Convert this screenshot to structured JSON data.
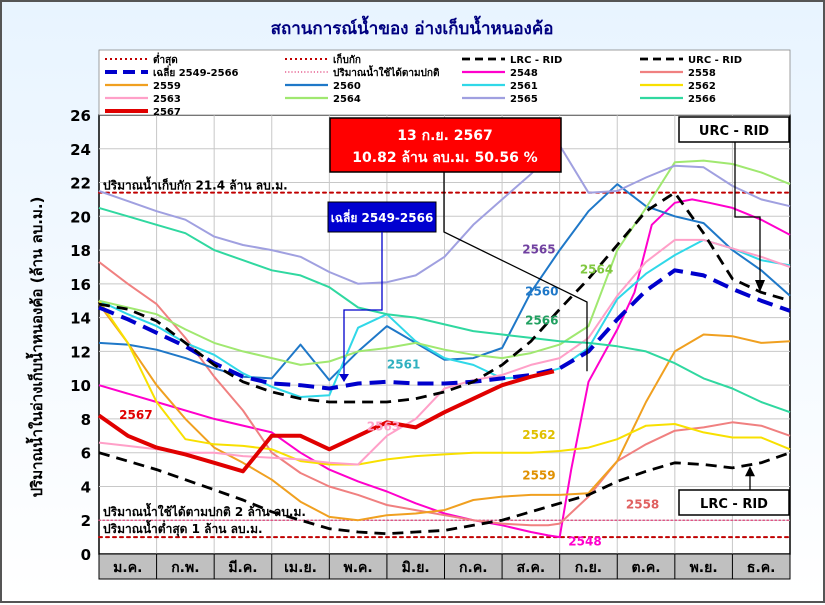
{
  "chart_data": {
    "type": "line",
    "title": "สถานการณ์น้ำของ อ่างเก็บน้ำหนองค้อ",
    "ylabel": "ปริมาณน้ำในอ่างเก็บน้ำหนองค้อ (ล้าน ลบ.ม.)",
    "xlabel": "",
    "ylim": [
      0,
      26
    ],
    "yticks": [
      0,
      2,
      4,
      6,
      8,
      10,
      12,
      14,
      16,
      18,
      20,
      22,
      24,
      26
    ],
    "months": [
      "ม.ค.",
      "ก.พ.",
      "มี.ค.",
      "เม.ย.",
      "พ.ค.",
      "มิ.ย.",
      "ก.ค.",
      "ส.ค.",
      "ก.ย.",
      "ต.ค.",
      "พ.ย.",
      "ธ.ค."
    ],
    "grid": true,
    "legend_position": "top",
    "reference_lines": [
      {
        "name": "ต่ำสุด",
        "value": 1.0,
        "color": "#c00000",
        "style": "dotted",
        "label": "ปริมาณน้ำต่ำสุด 1 ล้าน ลบ.ม."
      },
      {
        "name": "เก็บกัก",
        "value": 21.4,
        "color": "#c00000",
        "style": "dotted",
        "label": "ปริมาณน้ำเก็บกัก 21.4 ล้าน ลบ.ม."
      },
      {
        "name": "ปริมาณน้ำใช้ได้ตามปกติ",
        "value": 2.0,
        "color": "#e0407a",
        "style": "dotted-thin",
        "label": "ปริมาณน้ำใช้ได้ตามปกติ 2 ล้าน ลบ.ม."
      }
    ],
    "series": [
      {
        "name": "LRC - RID",
        "color": "#000000",
        "dash": "dash",
        "x": [
          0,
          0.5,
          1,
          1.5,
          2,
          2.5,
          3,
          3.5,
          4,
          4.5,
          5,
          5.5,
          6,
          6.5,
          7,
          7.5,
          8,
          8.5,
          9,
          9.5,
          10,
          10.5,
          11,
          11.5,
          12
        ],
        "values": [
          6.0,
          5.5,
          5.0,
          4.4,
          3.8,
          3.2,
          2.5,
          2.0,
          1.5,
          1.3,
          1.2,
          1.3,
          1.4,
          1.7,
          2.0,
          2.5,
          3.0,
          3.5,
          4.3,
          4.9,
          5.4,
          5.3,
          5.1,
          5.4,
          6.0
        ]
      },
      {
        "name": "URC - RID",
        "color": "#000000",
        "dash": "dash",
        "x": [
          0,
          0.5,
          1,
          1.5,
          2,
          2.5,
          3,
          3.5,
          4,
          4.5,
          5,
          5.5,
          6,
          6.5,
          7,
          7.5,
          8,
          8.5,
          9,
          9.5,
          10,
          10.5,
          11,
          11.5,
          12
        ],
        "values": [
          14.8,
          14.5,
          13.8,
          12.5,
          11.2,
          10.2,
          9.6,
          9.2,
          9.0,
          9.0,
          9.0,
          9.2,
          9.6,
          10.2,
          11.2,
          12.6,
          14.5,
          16.3,
          18.3,
          20.3,
          21.4,
          19.0,
          16.3,
          15.5,
          15.0
        ]
      },
      {
        "name": "เฉลี่ย 2549-2566",
        "color": "#0000cc",
        "dash": "dash-thick",
        "x": [
          0,
          0.5,
          1,
          1.5,
          2,
          2.5,
          3,
          3.5,
          4,
          4.5,
          5,
          5.5,
          6,
          6.5,
          7,
          7.5,
          8,
          8.5,
          9,
          9.5,
          10,
          10.5,
          11,
          11.5,
          12
        ],
        "values": [
          14.6,
          13.9,
          13.1,
          12.3,
          11.3,
          10.5,
          10.1,
          10.0,
          9.8,
          10.1,
          10.2,
          10.1,
          10.1,
          10.2,
          10.4,
          10.6,
          11.0,
          12.0,
          13.9,
          15.6,
          16.8,
          16.5,
          15.7,
          15.0,
          14.4
        ]
      },
      {
        "name": "2548",
        "color": "#ff00cc",
        "x": [
          0,
          1,
          2,
          3,
          3.5,
          4,
          4.5,
          5,
          5.5,
          6,
          6.5,
          7,
          7.5,
          7.8,
          8,
          8.2,
          8.5,
          9,
          9.3,
          9.6,
          10,
          10.3,
          10.6,
          11,
          11.5,
          12
        ],
        "values": [
          10.0,
          9.0,
          8.0,
          7.2,
          6.0,
          5.0,
          4.3,
          3.7,
          3.0,
          2.4,
          2.0,
          1.7,
          1.3,
          1.1,
          1.0,
          5.0,
          10.2,
          13.3,
          15.5,
          19.5,
          20.8,
          21.0,
          20.8,
          20.5,
          19.8,
          18.9
        ]
      },
      {
        "name": "2558",
        "color": "#f08080",
        "x": [
          0,
          0.5,
          1,
          1.5,
          2,
          2.5,
          3,
          3.5,
          4,
          4.5,
          5,
          5.5,
          6,
          6.5,
          7,
          7.5,
          7.8,
          8,
          8.5,
          9,
          9.5,
          10,
          10.5,
          11,
          11.5,
          12
        ],
        "values": [
          17.3,
          16.0,
          14.8,
          12.8,
          10.5,
          8.5,
          6.0,
          4.8,
          4.0,
          3.5,
          2.9,
          2.6,
          2.3,
          2.0,
          1.8,
          1.7,
          1.7,
          1.8,
          3.4,
          5.5,
          6.5,
          7.3,
          7.5,
          7.8,
          7.6,
          7.0
        ]
      },
      {
        "name": "2559",
        "color": "#f0a020",
        "x": [
          0,
          0.5,
          1,
          1.5,
          2,
          2.5,
          3,
          3.5,
          4,
          4.5,
          5,
          5.5,
          6,
          6.5,
          7,
          7.5,
          8,
          8.5,
          9,
          9.5,
          10,
          10.5,
          11,
          11.5,
          12
        ],
        "values": [
          14.8,
          12.5,
          10.0,
          8.0,
          6.3,
          5.4,
          4.4,
          3.1,
          2.2,
          2.0,
          2.3,
          2.4,
          2.6,
          3.2,
          3.4,
          3.5,
          3.5,
          3.6,
          5.5,
          9.0,
          12.0,
          13.0,
          12.9,
          12.5,
          12.6
        ]
      },
      {
        "name": "2560",
        "color": "#1f78c8",
        "x": [
          0,
          0.5,
          1,
          1.5,
          2,
          2.5,
          3,
          3.5,
          4,
          4.5,
          5,
          5.5,
          6,
          6.5,
          7,
          7.5,
          8,
          8.5,
          9,
          9.5,
          10,
          10.5,
          11,
          11.5,
          12
        ],
        "values": [
          12.5,
          12.4,
          12.1,
          11.6,
          11.0,
          10.5,
          10.4,
          12.4,
          10.3,
          12.0,
          13.5,
          12.5,
          11.5,
          11.6,
          12.2,
          15.5,
          18.0,
          20.3,
          21.9,
          20.6,
          20.0,
          19.6,
          18.0,
          16.8,
          15.3
        ]
      },
      {
        "name": "2561",
        "color": "#30d8e8",
        "x": [
          0,
          0.5,
          1,
          1.5,
          2,
          2.5,
          3,
          3.5,
          4,
          4.5,
          5,
          5.5,
          6,
          6.5,
          7,
          7.5,
          8,
          8.5,
          9,
          9.5,
          10,
          10.5,
          11,
          11.5,
          12
        ],
        "values": [
          15.0,
          14.2,
          13.5,
          12.5,
          11.8,
          10.7,
          9.9,
          9.3,
          9.4,
          13.4,
          14.2,
          12.6,
          11.6,
          11.2,
          10.4,
          10.5,
          11.0,
          12.2,
          15.1,
          16.6,
          17.7,
          18.6,
          18.1,
          17.4,
          17.1
        ]
      },
      {
        "name": "2562",
        "color": "#f8e000",
        "x": [
          0,
          0.5,
          1,
          1.5,
          2,
          2.5,
          3,
          3.5,
          4,
          4.5,
          5,
          5.5,
          6,
          6.5,
          7,
          7.5,
          8,
          8.5,
          9,
          9.5,
          10,
          10.5,
          11,
          11.5,
          12
        ],
        "values": [
          15.0,
          12.5,
          9.0,
          6.8,
          6.5,
          6.4,
          6.2,
          5.5,
          5.3,
          5.3,
          5.6,
          5.8,
          5.9,
          6.0,
          6.0,
          6.0,
          6.1,
          6.3,
          6.8,
          7.6,
          7.7,
          7.2,
          6.9,
          6.9,
          6.2
        ]
      },
      {
        "name": "2563",
        "color": "#ffa0c8",
        "x": [
          0,
          0.5,
          1,
          1.5,
          2,
          2.5,
          3,
          3.5,
          4,
          4.5,
          5,
          5.5,
          6,
          6.5,
          7,
          7.5,
          8,
          8.5,
          9,
          9.5,
          10,
          10.5,
          11,
          11.5,
          12
        ],
        "values": [
          6.6,
          6.4,
          6.2,
          6.0,
          6.0,
          5.8,
          5.7,
          5.6,
          5.4,
          5.3,
          7.0,
          8.0,
          9.8,
          10.3,
          10.6,
          11.2,
          11.6,
          12.8,
          15.3,
          17.3,
          18.6,
          18.6,
          18.1,
          17.6,
          17.0
        ]
      },
      {
        "name": "2564",
        "color": "#a0e870",
        "x": [
          0,
          0.5,
          1,
          1.5,
          2,
          2.5,
          3,
          3.5,
          4,
          4.5,
          5,
          5.5,
          6,
          6.5,
          7,
          7.5,
          8,
          8.5,
          9,
          9.5,
          10,
          10.5,
          11,
          11.5,
          12
        ],
        "values": [
          15.0,
          14.6,
          14.2,
          13.3,
          12.5,
          12.0,
          11.6,
          11.2,
          11.4,
          12.0,
          12.2,
          12.5,
          12.1,
          11.8,
          11.6,
          11.9,
          12.4,
          13.5,
          18.0,
          20.5,
          23.2,
          23.3,
          23.1,
          22.6,
          21.9
        ]
      },
      {
        "name": "2565",
        "color": "#a0a0e0",
        "x": [
          0,
          0.5,
          1,
          1.5,
          2,
          2.5,
          3,
          3.5,
          4,
          4.5,
          5,
          5.5,
          6,
          6.5,
          7,
          7.5,
          8,
          8.5,
          9,
          9.5,
          10,
          10.5,
          11,
          11.5,
          12
        ],
        "values": [
          21.5,
          20.9,
          20.3,
          19.8,
          18.8,
          18.3,
          18.0,
          17.6,
          16.7,
          16.0,
          16.1,
          16.5,
          17.6,
          19.5,
          21.0,
          22.5,
          24.2,
          21.4,
          21.5,
          22.3,
          23.0,
          22.9,
          21.8,
          21.0,
          20.6
        ]
      },
      {
        "name": "2566",
        "color": "#30d8a0",
        "x": [
          0,
          0.5,
          1,
          1.5,
          2,
          2.5,
          3,
          3.5,
          4,
          4.5,
          5,
          5.5,
          6,
          6.5,
          7,
          7.5,
          8,
          8.5,
          9,
          9.5,
          10,
          10.5,
          11,
          11.5,
          12
        ],
        "values": [
          20.5,
          20.0,
          19.5,
          19.0,
          18.0,
          17.4,
          16.8,
          16.5,
          15.8,
          14.6,
          14.2,
          14.0,
          13.6,
          13.2,
          13.0,
          12.8,
          12.6,
          12.5,
          12.3,
          12.0,
          11.3,
          10.4,
          9.8,
          9.0,
          8.4
        ]
      },
      {
        "name": "2567",
        "color": "#e00000",
        "width": 4,
        "x": [
          0,
          0.5,
          1,
          1.5,
          2,
          2.5,
          3,
          3.5,
          4,
          4.5,
          5,
          5.5,
          6,
          6.5,
          7,
          7.5,
          7.9
        ],
        "values": [
          8.2,
          7.0,
          6.3,
          5.9,
          5.4,
          4.9,
          7.0,
          7.0,
          6.2,
          7.0,
          7.8,
          7.5,
          8.4,
          9.2,
          10.0,
          10.5,
          10.82
        ]
      }
    ],
    "series_labels": [
      {
        "text": "2567",
        "series": "2567",
        "x": 0.35,
        "y": 8.0,
        "color": "#e00000"
      },
      {
        "text": "2565",
        "series": "2565",
        "x": 7.35,
        "y": 17.8,
        "color": "#7040a0"
      },
      {
        "text": "2564",
        "series": "2564",
        "x": 8.35,
        "y": 16.6,
        "color": "#80c840"
      },
      {
        "text": "2560",
        "series": "2560",
        "x": 7.4,
        "y": 15.3,
        "color": "#1f78c8"
      },
      {
        "text": "2566",
        "series": "2566",
        "x": 7.4,
        "y": 13.6,
        "color": "#20a060"
      },
      {
        "text": "2561",
        "series": "2561",
        "x": 5.0,
        "y": 11.0,
        "color": "#30b0c0"
      },
      {
        "text": "2563",
        "series": "2563",
        "x": 4.65,
        "y": 7.3,
        "color": "#ffa0c8"
      },
      {
        "text": "2562",
        "series": "2562",
        "x": 7.35,
        "y": 6.8,
        "color": "#e0c000"
      },
      {
        "text": "2559",
        "series": "2559",
        "x": 7.35,
        "y": 4.4,
        "color": "#e09000"
      },
      {
        "text": "2558",
        "series": "2558",
        "x": 9.15,
        "y": 2.7,
        "color": "#e06060"
      },
      {
        "text": "2548",
        "series": "2548",
        "x": 8.15,
        "y": 0.5,
        "color": "#ff00cc"
      }
    ],
    "annotations": {
      "current_line1": "13 ก.ย. 2567",
      "current_line2": "10.82 ล้าน ลบ.ม. 50.56 %",
      "avg_box": "เฉลี่ย 2549-2566",
      "urc_box": "URC - RID",
      "lrc_box": "LRC - RID"
    },
    "legend": [
      {
        "label": "ต่ำสุด",
        "color": "#c00000",
        "style": "dotted"
      },
      {
        "label": "เก็บกัก",
        "color": "#c00000",
        "style": "dotted"
      },
      {
        "label": "LRC - RID",
        "color": "#000000",
        "style": "dash"
      },
      {
        "label": "URC - RID",
        "color": "#000000",
        "style": "dash"
      },
      {
        "label": "เฉลี่ย 2549-2566",
        "color": "#0000cc",
        "style": "dash-thick"
      },
      {
        "label": "ปริมาณน้ำใช้ได้ตามปกติ",
        "color": "#e0407a",
        "style": "dotted-thin"
      },
      {
        "label": "2548",
        "color": "#ff00cc",
        "style": "solid"
      },
      {
        "label": "2558",
        "color": "#f08080",
        "style": "solid"
      },
      {
        "label": "2559",
        "color": "#f0a020",
        "style": "solid"
      },
      {
        "label": "2560",
        "color": "#1f78c8",
        "style": "solid"
      },
      {
        "label": "2561",
        "color": "#30d8e8",
        "style": "solid"
      },
      {
        "label": "2562",
        "color": "#f8e000",
        "style": "solid"
      },
      {
        "label": "2563",
        "color": "#ffa0c8",
        "style": "solid"
      },
      {
        "label": "2564",
        "color": "#a0e870",
        "style": "solid"
      },
      {
        "label": "2565",
        "color": "#a0a0e0",
        "style": "solid"
      },
      {
        "label": "2566",
        "color": "#30d8a0",
        "style": "solid"
      },
      {
        "label": "2567",
        "color": "#e00000",
        "style": "solid-thick"
      }
    ]
  }
}
